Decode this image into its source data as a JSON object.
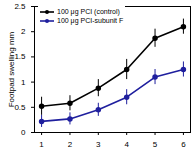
{
  "chart_data": {
    "type": "line",
    "y_label": "Footpad swelling mm",
    "x": [
      1,
      2,
      3,
      4,
      5,
      6
    ],
    "xlim": [
      0.75,
      6.25
    ],
    "xticks": [
      1,
      2,
      3,
      4,
      5,
      6
    ],
    "ylim": [
      0,
      2.5
    ],
    "yticks": [
      0,
      0.5,
      1,
      1.5,
      2,
      2.5
    ],
    "grid": false,
    "legend": "top-left",
    "series": [
      {
        "name": "100 μg PCI (control)",
        "color": "#000000",
        "marker": "circle",
        "values": [
          0.52,
          0.58,
          0.88,
          1.25,
          1.87,
          2.1
        ],
        "errors": [
          0.18,
          0.15,
          0.17,
          0.2,
          0.18,
          0.15
        ]
      },
      {
        "name": "100 μg PCI-subunit F",
        "color": "#1f1f9e",
        "marker": "circle",
        "values": [
          0.22,
          0.27,
          0.45,
          0.7,
          1.1,
          1.25
        ],
        "errors": [
          0.12,
          0.12,
          0.13,
          0.15,
          0.15,
          0.15
        ]
      }
    ]
  }
}
